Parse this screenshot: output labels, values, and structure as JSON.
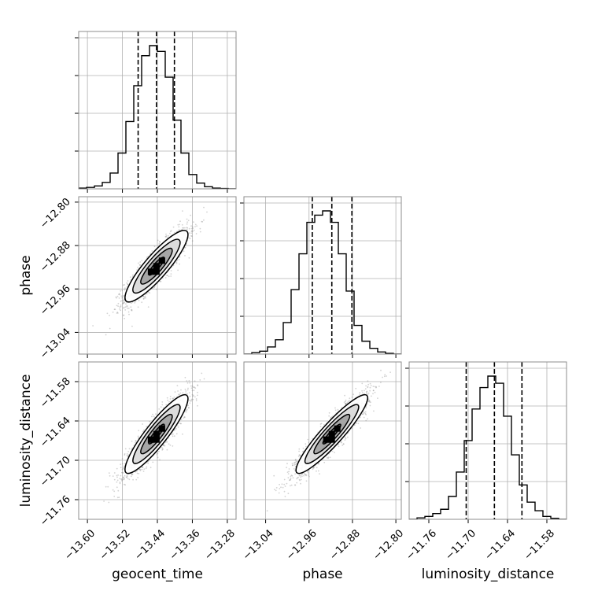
{
  "chart_data": {
    "type": "corner",
    "parameters": [
      "geocent_time",
      "phase",
      "luminosity_distance"
    ],
    "ranges": {
      "geocent_time": [
        -13.62,
        -13.26
      ],
      "phase": [
        -13.08,
        -12.79
      ],
      "luminosity_distance": [
        -11.79,
        -11.55
      ]
    },
    "ticks": {
      "geocent_time": {
        "values": [
          -13.6,
          -13.52,
          -13.44,
          -13.36,
          -13.28
        ],
        "labels": [
          "−13.60",
          "−13.52",
          "−13.44",
          "−13.36",
          "−13.28"
        ]
      },
      "phase": {
        "values": [
          -13.04,
          -12.96,
          -12.88,
          -12.8
        ],
        "labels": [
          "−13.04",
          "−12.96",
          "−12.88",
          "−12.80"
        ]
      },
      "luminosity_distance": {
        "values": [
          -11.76,
          -11.7,
          -11.64,
          -11.58
        ],
        "labels": [
          "−11.76",
          "−11.70",
          "−11.64",
          "−11.58"
        ]
      }
    },
    "histograms": {
      "geocent_time": {
        "bin_edges": [
          -13.62,
          -13.602,
          -13.584,
          -13.566,
          -13.548,
          -13.53,
          -13.512,
          -13.494,
          -13.476,
          -13.458,
          -13.44,
          -13.422,
          -13.404,
          -13.386,
          -13.368,
          -13.35,
          -13.332,
          -13.314,
          -13.296,
          -13.278,
          -13.26
        ],
        "counts": [
          0.005,
          0.01,
          0.02,
          0.045,
          0.11,
          0.25,
          0.47,
          0.72,
          0.93,
          1.0,
          0.96,
          0.78,
          0.48,
          0.25,
          0.1,
          0.04,
          0.015,
          0.005,
          0.002,
          0.0
        ],
        "quantiles": [
          -13.484,
          -13.442,
          -13.401
        ]
      },
      "phase": {
        "bin_edges": [
          -13.08,
          -13.0655,
          -13.051,
          -13.0365,
          -13.022,
          -13.0075,
          -12.993,
          -12.9785,
          -12.964,
          -12.9495,
          -12.935,
          -12.9205,
          -12.906,
          -12.8915,
          -12.877,
          -12.8625,
          -12.848,
          -12.8335,
          -12.819,
          -12.8045,
          -12.79
        ],
        "counts": [
          0.0,
          0.01,
          0.02,
          0.05,
          0.1,
          0.22,
          0.45,
          0.7,
          0.92,
          0.97,
          1.0,
          0.92,
          0.7,
          0.44,
          0.2,
          0.09,
          0.04,
          0.015,
          0.005,
          0.0
        ],
        "quantiles": [
          -12.954,
          -12.918,
          -12.881
        ]
      },
      "luminosity_distance": {
        "bin_edges": [
          -11.79,
          -11.778,
          -11.766,
          -11.754,
          -11.742,
          -11.73,
          -11.718,
          -11.706,
          -11.694,
          -11.682,
          -11.67,
          -11.658,
          -11.646,
          -11.634,
          -11.622,
          -11.61,
          -11.598,
          -11.586,
          -11.574,
          -11.562,
          -11.55
        ],
        "counts": [
          0.0,
          0.01,
          0.02,
          0.04,
          0.07,
          0.16,
          0.33,
          0.55,
          0.77,
          0.92,
          1.0,
          0.95,
          0.72,
          0.45,
          0.24,
          0.12,
          0.06,
          0.02,
          0.007,
          0.0
        ],
        "quantiles": [
          -11.703,
          -11.66,
          -11.618
        ]
      }
    },
    "pairs": [
      {
        "x": "geocent_time",
        "y": "phase",
        "center": [
          -13.442,
          -12.918
        ],
        "sigma": [
          0.036,
          0.033
        ],
        "rho": 0.88
      },
      {
        "x": "geocent_time",
        "y": "luminosity_distance",
        "center": [
          -13.442,
          -11.66
        ],
        "sigma": [
          0.036,
          0.03
        ],
        "rho": 0.9
      },
      {
        "x": "phase",
        "y": "luminosity_distance",
        "center": [
          -12.918,
          -11.66
        ],
        "sigma": [
          0.033,
          0.03
        ],
        "rho": 0.92
      }
    ],
    "contour_levels": [
      0.5,
      1.0,
      1.5,
      2.0
    ],
    "grid": true,
    "xlabels": [
      "geocent_time",
      "phase",
      "luminosity_distance"
    ],
    "ylabels": [
      "",
      "phase",
      "luminosity_distance"
    ]
  }
}
